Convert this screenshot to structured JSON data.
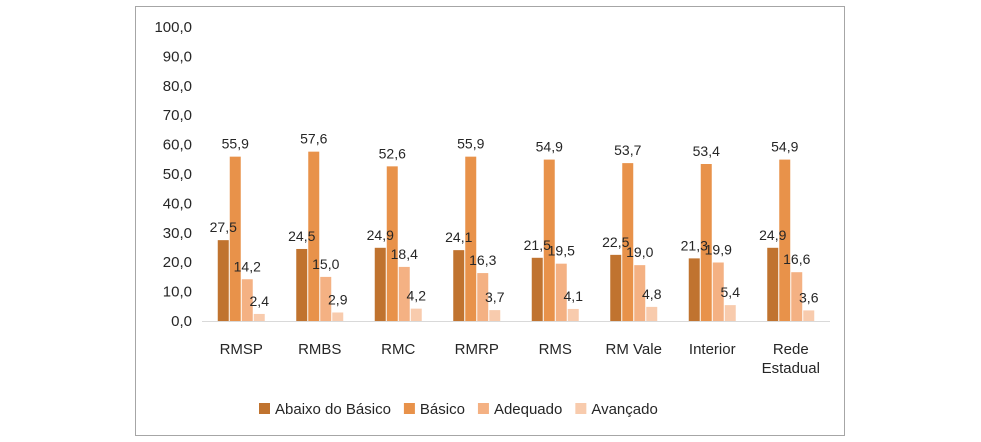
{
  "chart_data": {
    "type": "bar",
    "categories": [
      "RMSP",
      "RMBS",
      "RMC",
      "RMRP",
      "RMS",
      "RM Vale",
      "Interior",
      "Rede Estadual"
    ],
    "series": [
      {
        "name": "Abaixo do Básico",
        "color": "#c0732f",
        "values": [
          27.5,
          24.5,
          24.9,
          24.1,
          21.5,
          22.5,
          21.3,
          24.9
        ]
      },
      {
        "name": "Básico",
        "color": "#e8924a",
        "values": [
          55.9,
          57.6,
          52.6,
          55.9,
          54.9,
          53.7,
          53.4,
          54.9
        ]
      },
      {
        "name": "Adequado",
        "color": "#f4b183",
        "values": [
          14.2,
          15.0,
          18.4,
          16.3,
          19.5,
          19.0,
          19.9,
          16.6
        ]
      },
      {
        "name": "Avançado",
        "color": "#f8cbad",
        "values": [
          2.4,
          2.9,
          4.2,
          3.7,
          4.1,
          4.8,
          5.4,
          3.6
        ]
      }
    ],
    "ylim": [
      0,
      100
    ],
    "ytick_step": 10,
    "ytick_labels": [
      "0,0",
      "10,0",
      "20,0",
      "30,0",
      "40,0",
      "50,0",
      "60,0",
      "70,0",
      "80,0",
      "90,0",
      "100,0"
    ],
    "data_labels": [
      [
        "27,5",
        "24,5",
        "24,9",
        "24,1",
        "21,5",
        "22,5",
        "21,3",
        "24,9"
      ],
      [
        "55,9",
        "57,6",
        "52,6",
        "55,9",
        "54,9",
        "53,7",
        "53,4",
        "54,9"
      ],
      [
        "14,2",
        "15,0",
        "18,4",
        "16,3",
        "19,5",
        "19,0",
        "19,9",
        "16,6"
      ],
      [
        "2,4",
        "2,9",
        "4,2",
        "3,7",
        "4,1",
        "4,8",
        "5,4",
        "3,6"
      ]
    ],
    "grid": false,
    "legend_position": "bottom"
  }
}
